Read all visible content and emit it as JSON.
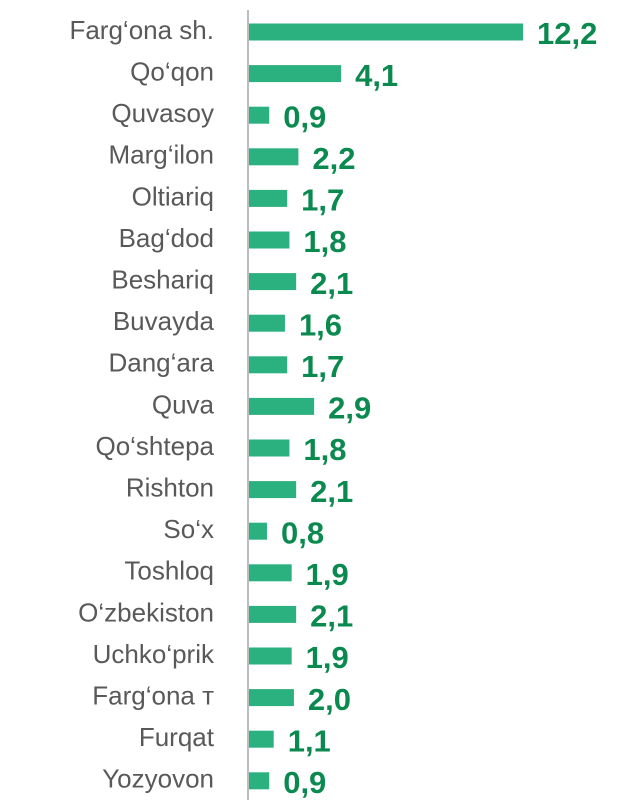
{
  "chart_data": {
    "type": "hbar",
    "categories": [
      "Farg‘ona sh.",
      "Qo‘qon",
      "Quvasoy",
      "Marg‘ilon",
      "Oltiariq",
      "Bag‘dod",
      "Beshariq",
      "Buvayda",
      "Dang‘ara",
      "Quva",
      "Qo‘shtepa",
      "Rishton",
      "So‘x",
      "Toshloq",
      "O‘zbekiston",
      "Uchko‘prik",
      "Farg‘ona т",
      "Furqat",
      "Yozyovon"
    ],
    "values": [
      12.2,
      4.1,
      0.9,
      2.2,
      1.7,
      1.8,
      2.1,
      1.6,
      1.7,
      2.9,
      1.8,
      2.1,
      0.8,
      1.9,
      2.1,
      1.9,
      2.0,
      1.1,
      0.9
    ],
    "value_labels": [
      "12,2",
      "4,1",
      "0,9",
      "2,2",
      "1,7",
      "1,8",
      "2,1",
      "1,6",
      "1,7",
      "2,9",
      "1,8",
      "2,1",
      "0,8",
      "1,9",
      "2,1",
      "1,9",
      "2,0",
      "1,1",
      "0,9"
    ],
    "color": "#2bb07f",
    "xlim": [
      0,
      13
    ]
  }
}
